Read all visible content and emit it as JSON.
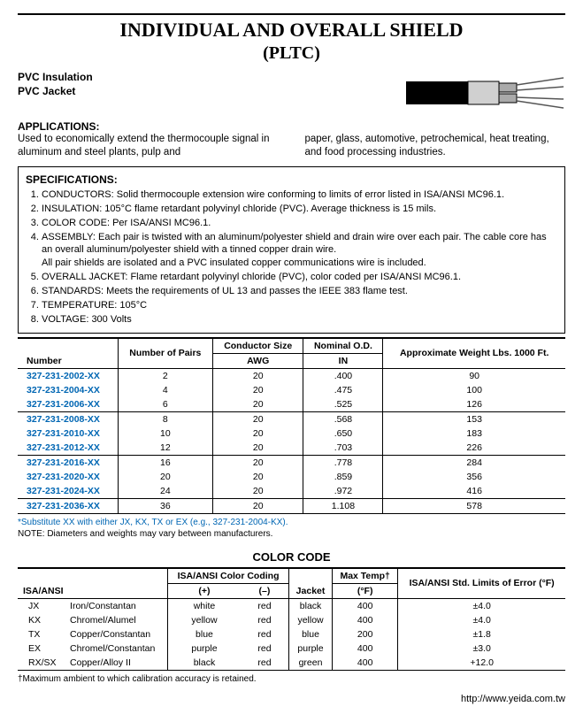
{
  "title": "INDIVIDUAL AND OVERALL SHIELD",
  "subtitle": "(PLTC)",
  "insulation_line1": "PVC Insulation",
  "insulation_line2": "PVC Jacket",
  "applications_head": "APPLICATIONS:",
  "applications_left": "Used to economically extend the thermocouple signal in aluminum and steel plants, pulp and",
  "applications_right": "paper, glass, automotive, petrochemical, heat treating, and food processing industries.",
  "spec_head": "SPECIFICATIONS:",
  "specs": {
    "s1": "CONDUCTORS: Solid thermocouple extension wire conforming to limits of error listed in ISA/ANSI MC96.1.",
    "s2": "INSULATION: 105°C flame retardant polyvinyl chloride (PVC). Average thickness is 15 mils.",
    "s3": "COLOR CODE: Per ISA/ANSI MC96.1.",
    "s4a": "ASSEMBLY: Each pair is twisted with an aluminum/polyester shield and drain wire over each pair. The cable core has an overall aluminum/polyester shield with a tinned copper drain wire.",
    "s4b": "All pair shields are isolated and a PVC insulated copper communications wire is included.",
    "s5": "OVERALL JACKET: Flame retardant polyvinyl chloride (PVC), color coded per ISA/ANSI MC96.1.",
    "s6": "STANDARDS: Meets the requirements of UL 13 and passes the IEEE 383 flame test.",
    "s7": "TEMPERATURE: 105°C",
    "s8": "VOLTAGE: 300 Volts"
  },
  "spec_table": {
    "headers": {
      "number": "Number",
      "pairs": "Number of Pairs",
      "cond": "Conductor Size",
      "awg": "AWG",
      "nom": "Nominal O.D.",
      "in": "IN",
      "wt": "Approximate Weight Lbs. 1000 Ft."
    },
    "rows": [
      {
        "pn": "327-231-2002-XX",
        "pairs": "2",
        "awg": "20",
        "od": ".400",
        "wt": "90"
      },
      {
        "pn": "327-231-2004-XX",
        "pairs": "4",
        "awg": "20",
        "od": ".475",
        "wt": "100"
      },
      {
        "pn": "327-231-2006-XX",
        "pairs": "6",
        "awg": "20",
        "od": ".525",
        "wt": "126"
      },
      {
        "pn": "327-231-2008-XX",
        "pairs": "8",
        "awg": "20",
        "od": ".568",
        "wt": "153"
      },
      {
        "pn": "327-231-2010-XX",
        "pairs": "10",
        "awg": "20",
        "od": ".650",
        "wt": "183"
      },
      {
        "pn": "327-231-2012-XX",
        "pairs": "12",
        "awg": "20",
        "od": ".703",
        "wt": "226"
      },
      {
        "pn": "327-231-2016-XX",
        "pairs": "16",
        "awg": "20",
        "od": ".778",
        "wt": "284"
      },
      {
        "pn": "327-231-2020-XX",
        "pairs": "20",
        "awg": "20",
        "od": ".859",
        "wt": "356"
      },
      {
        "pn": "327-231-2024-XX",
        "pairs": "24",
        "awg": "20",
        "od": ".972",
        "wt": "416"
      },
      {
        "pn": "327-231-2036-XX",
        "pairs": "36",
        "awg": "20",
        "od": "1.108",
        "wt": "578"
      }
    ]
  },
  "footnote_sub": "*Substitute XX with either JX, KX, TX or EX (e.g., 327-231-2004-KX).",
  "footnote_note": "NOTE:  Diameters and weights may vary between manufacturers.",
  "cc_title": "COLOR CODE",
  "cc_headers": {
    "isa": "ISA/ANSI",
    "coding": "ISA/ANSI Color Coding",
    "plus": "(+)",
    "minus": "(–)",
    "jacket": "Jacket",
    "max": "Max Temp†",
    "maxunit": "(°F)",
    "err": "ISA/ANSI Std. Limits of Error (°F)"
  },
  "cc_rows": [
    {
      "code": "JX",
      "mat": "Iron/Constantan",
      "p": "white",
      "m": "red",
      "j": "black",
      "t": "400",
      "e": "±4.0"
    },
    {
      "code": "KX",
      "mat": "Chromel/Alumel",
      "p": "yellow",
      "m": "red",
      "j": "yellow",
      "t": "400",
      "e": "±4.0"
    },
    {
      "code": "TX",
      "mat": "Copper/Constantan",
      "p": "blue",
      "m": "red",
      "j": "blue",
      "t": "200",
      "e": "±1.8"
    },
    {
      "code": "EX",
      "mat": "Chromel/Constantan",
      "p": "purple",
      "m": "red",
      "j": "purple",
      "t": "400",
      "e": "±3.0"
    },
    {
      "code": "RX/SX",
      "mat": "Copper/Alloy II",
      "p": "black",
      "m": "red",
      "j": "green",
      "t": "400",
      "e": "+12.0"
    }
  ],
  "cc_footnote": "†Maximum ambient to which calibration accuracy is retained.",
  "url": "http://www.yeida.com.tw"
}
